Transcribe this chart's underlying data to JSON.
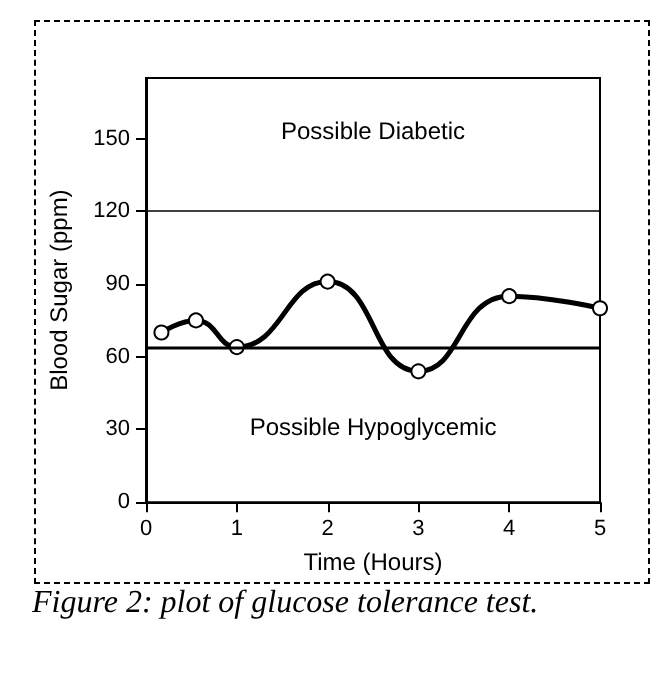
{
  "chart_data": {
    "type": "line",
    "xlabel": "Time (Hours)",
    "ylabel": "Blood Sugar (ppm)",
    "x": [
      0.17,
      0.55,
      1,
      2,
      3,
      4,
      5
    ],
    "series": [
      {
        "color": "#000000",
        "values": [
          70,
          75,
          64,
          91,
          54,
          85,
          80
        ]
      }
    ],
    "xlim": [
      0,
      5
    ],
    "xticks": [
      0,
      1,
      2,
      3,
      4,
      5
    ],
    "ylim": [
      0,
      175
    ],
    "yticks": [
      0,
      30,
      60,
      90,
      120,
      150
    ],
    "marker": "circle",
    "line_style": "solid",
    "grid": false,
    "ref_lines": [
      {
        "axis": "y",
        "value": 120,
        "label": "Possible Diabetic"
      },
      {
        "axis": "y",
        "value": 64,
        "label": "Possible Hypoglycemic"
      }
    ],
    "annotations": [
      "Figure 2: plot of glucose tolerance test."
    ]
  }
}
